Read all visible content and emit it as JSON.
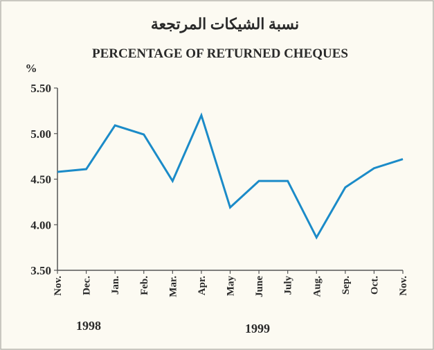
{
  "chart_data": {
    "type": "line",
    "title_arabic": "نسبة الشيكات المرتجعة",
    "title": "PERCENTAGE OF RETURNED CHEQUES",
    "y_label": "%",
    "categories": [
      "Nov.",
      "Dec.",
      "Jan.",
      "Feb.",
      "Mar.",
      "Apr.",
      "May",
      "June",
      "July",
      "Aug.",
      "Sep.",
      "Oct.",
      "Nov."
    ],
    "series": [
      {
        "name": "Percentage of returned cheques",
        "color": "#1b8bc8",
        "values": [
          4.58,
          4.61,
          5.09,
          4.99,
          4.48,
          5.2,
          4.19,
          4.48,
          4.48,
          3.86,
          4.41,
          4.62,
          4.72
        ]
      }
    ],
    "ylim": [
      3.5,
      5.5
    ],
    "yticks": [
      {
        "value": 3.5,
        "label": "3.50"
      },
      {
        "value": 4.0,
        "label": "4.00"
      },
      {
        "value": 4.5,
        "label": "4.50"
      },
      {
        "value": 5.0,
        "label": "5.00"
      },
      {
        "value": 5.5,
        "label": "5.50"
      }
    ],
    "annotations": [
      "1998",
      "1999"
    ],
    "grid": false
  }
}
